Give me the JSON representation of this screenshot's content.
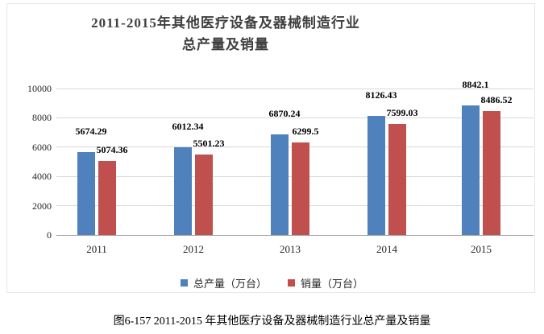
{
  "figure": {
    "title_line1": "2011-2015年其他医疗设备及器械制造行业",
    "title_line2": "总产量及销量",
    "caption": "图6-157 2011-2015 年其他医疗设备及器械制造行业总产量及销量"
  },
  "chart_data": {
    "type": "bar",
    "title": "2011-2015年其他医疗设备及器械制造行业总产量及销量",
    "categories": [
      "2011",
      "2012",
      "2013",
      "2014",
      "2015"
    ],
    "series": [
      {
        "key": "production",
        "name": "总产量（万台）",
        "color": "#4F81BD",
        "values": [
          5674.29,
          6012.34,
          6870.24,
          8126.43,
          8842.1
        ]
      },
      {
        "key": "sales",
        "name": "销量（万台）",
        "color": "#C0504D",
        "values": [
          5074.36,
          5501.23,
          6299.5,
          7599.03,
          8486.52
        ]
      }
    ],
    "xlabel": "",
    "ylabel": "",
    "ylim": [
      0,
      10000
    ],
    "yticks": [
      0,
      2000,
      4000,
      6000,
      8000,
      10000
    ],
    "grid": true,
    "legend_position": "bottom",
    "data_labels": true
  }
}
